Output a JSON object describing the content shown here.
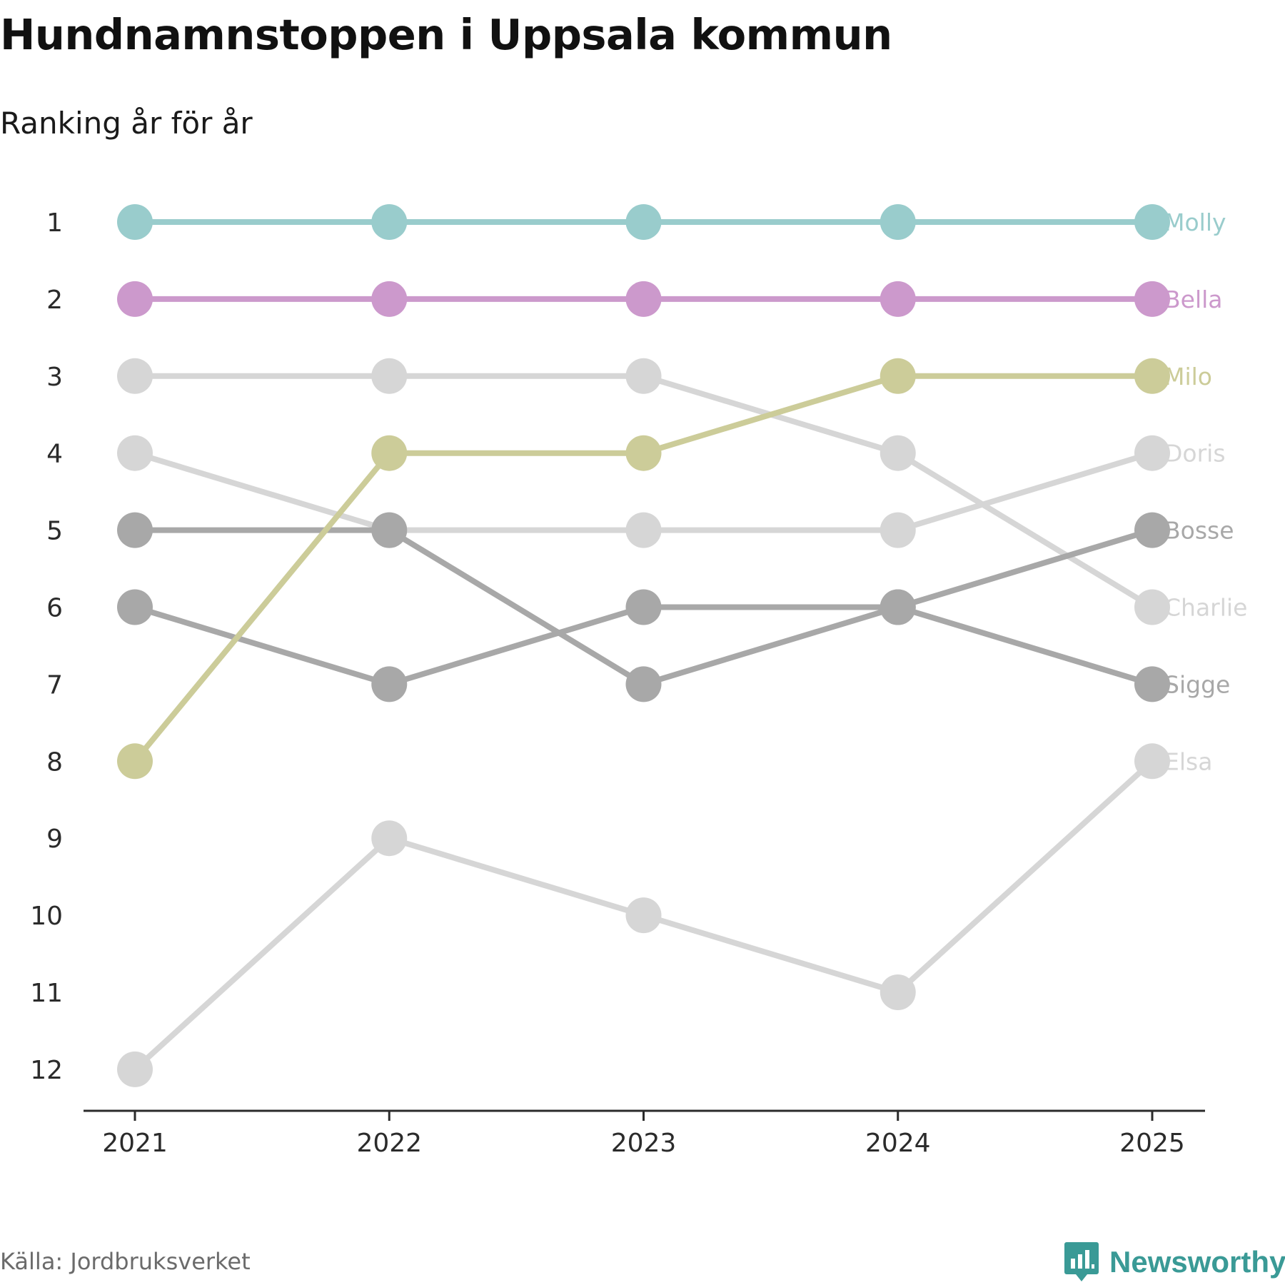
{
  "header": {
    "title": "Hundnamnstoppen i Uppsala kommun",
    "subtitle": "Ranking år för år"
  },
  "footer": {
    "source": "Källa: Jordbruksverket",
    "brand": "Newsworthy",
    "brand_color": "#3a9a96"
  },
  "chart_data": {
    "type": "line",
    "title": "Hundnamnstoppen i Uppsala kommun",
    "subtitle": "Ranking år för år",
    "xlabel": "",
    "ylabel": "",
    "x": [
      2021,
      2022,
      2023,
      2024,
      2025
    ],
    "x_tick_labels": [
      "2021",
      "2022",
      "2023",
      "2024",
      "2025"
    ],
    "y_ticks": [
      1,
      2,
      3,
      4,
      5,
      6,
      7,
      8,
      9,
      10,
      11,
      12
    ],
    "y_tick_labels": [
      "1",
      "2",
      "3",
      "4",
      "5",
      "6",
      "7",
      "8",
      "9",
      "10",
      "11",
      "12"
    ],
    "ylim": [
      1,
      12
    ],
    "y_inverted": true,
    "grid": false,
    "legend": "direct labels at right end",
    "series": [
      {
        "name": "Elsa",
        "values": [
          12,
          9,
          10,
          11,
          8
        ],
        "color": "#d6d6d6"
      },
      {
        "name": "Charlie",
        "values": [
          3,
          3,
          3,
          4,
          6
        ],
        "color": "#d6d6d6"
      },
      {
        "name": "Doris",
        "values": [
          4,
          5,
          5,
          5,
          4
        ],
        "color": "#d6d6d6"
      },
      {
        "name": "Sigge",
        "values": [
          6,
          7,
          6,
          6,
          7
        ],
        "color": "#a8a8a8"
      },
      {
        "name": "Bosse",
        "values": [
          5,
          5,
          7,
          6,
          5
        ],
        "color": "#a8a8a8"
      },
      {
        "name": "Milo",
        "values": [
          8,
          4,
          4,
          3,
          3
        ],
        "color": "#cccc99"
      },
      {
        "name": "Bella",
        "values": [
          2,
          2,
          2,
          2,
          2
        ],
        "color": "#cc99cc"
      },
      {
        "name": "Molly",
        "values": [
          1,
          1,
          1,
          1,
          1
        ],
        "color": "#99cccc"
      }
    ]
  }
}
